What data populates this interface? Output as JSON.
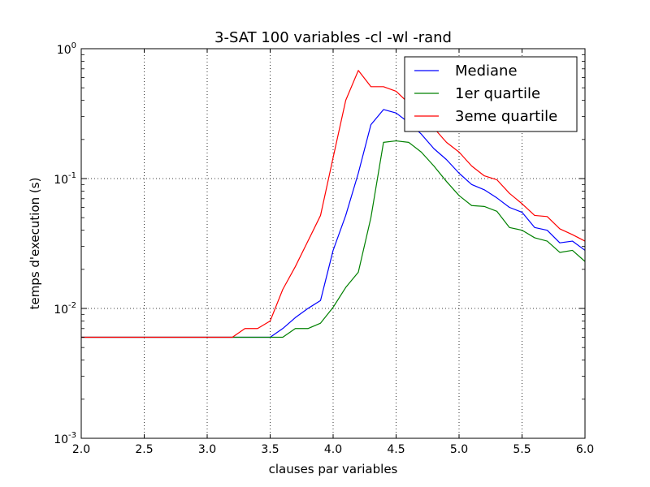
{
  "chart_data": {
    "type": "line",
    "title": "3-SAT 100 variables -cl -wl -rand",
    "xlabel": "clauses par variables",
    "ylabel": "temps d'execution (s)",
    "xlim": [
      2.0,
      6.0
    ],
    "ylim": [
      0.001,
      1
    ],
    "yscale": "log",
    "grid": true,
    "legend_position": "top-right",
    "x_ticks": [
      {
        "value": 2.0,
        "label": "2.0"
      },
      {
        "value": 2.5,
        "label": "2.5"
      },
      {
        "value": 3.0,
        "label": "3.0"
      },
      {
        "value": 3.5,
        "label": "3.5"
      },
      {
        "value": 4.0,
        "label": "4.0"
      },
      {
        "value": 4.5,
        "label": "4.5"
      },
      {
        "value": 5.0,
        "label": "5.0"
      },
      {
        "value": 5.5,
        "label": "5.5"
      },
      {
        "value": 6.0,
        "label": "6.0"
      }
    ],
    "y_ticks": [
      {
        "value": 1,
        "base": "10",
        "exp": "0"
      },
      {
        "value": 0.1,
        "base": "10",
        "exp": "-1"
      },
      {
        "value": 0.01,
        "base": "10",
        "exp": "-2"
      },
      {
        "value": 0.001,
        "base": "10",
        "exp": "-3"
      }
    ],
    "x": [
      2.0,
      2.1,
      2.2,
      2.3,
      2.4,
      2.5,
      2.6,
      2.7,
      2.8,
      2.9,
      3.0,
      3.1,
      3.2,
      3.3,
      3.4,
      3.5,
      3.6,
      3.7,
      3.8,
      3.9,
      4.0,
      4.1,
      4.2,
      4.3,
      4.4,
      4.5,
      4.6,
      4.7,
      4.8,
      4.9,
      5.0,
      5.1,
      5.2,
      5.3,
      5.4,
      5.5,
      5.6,
      5.7,
      5.8,
      5.9,
      6.0
    ],
    "series": [
      {
        "name": "Mediane",
        "color": "#0000ff",
        "values": [
          0.006,
          0.006,
          0.006,
          0.006,
          0.006,
          0.006,
          0.006,
          0.006,
          0.006,
          0.006,
          0.006,
          0.006,
          0.006,
          0.006,
          0.006,
          0.006,
          0.007,
          0.0085,
          0.01,
          0.0115,
          0.028,
          0.052,
          0.11,
          0.26,
          0.34,
          0.32,
          0.27,
          0.22,
          0.17,
          0.14,
          0.11,
          0.09,
          0.082,
          0.071,
          0.06,
          0.055,
          0.042,
          0.04,
          0.032,
          0.033,
          0.028
        ]
      },
      {
        "name": "1er quartile",
        "color": "#008000",
        "values": [
          0.006,
          0.006,
          0.006,
          0.006,
          0.006,
          0.006,
          0.006,
          0.006,
          0.006,
          0.006,
          0.006,
          0.006,
          0.006,
          0.006,
          0.006,
          0.006,
          0.006,
          0.007,
          0.007,
          0.0077,
          0.0102,
          0.0145,
          0.019,
          0.05,
          0.19,
          0.195,
          0.19,
          0.16,
          0.125,
          0.095,
          0.074,
          0.062,
          0.061,
          0.056,
          0.042,
          0.04,
          0.035,
          0.033,
          0.027,
          0.028,
          0.023
        ]
      },
      {
        "name": "3eme quartile",
        "color": "#ff0000",
        "values": [
          0.006,
          0.006,
          0.006,
          0.006,
          0.006,
          0.006,
          0.006,
          0.006,
          0.006,
          0.006,
          0.006,
          0.006,
          0.006,
          0.007,
          0.007,
          0.008,
          0.014,
          0.021,
          0.033,
          0.052,
          0.145,
          0.4,
          0.68,
          0.51,
          0.51,
          0.47,
          0.38,
          0.3,
          0.245,
          0.19,
          0.16,
          0.125,
          0.105,
          0.098,
          0.077,
          0.064,
          0.052,
          0.051,
          0.041,
          0.037,
          0.033
        ]
      }
    ]
  }
}
